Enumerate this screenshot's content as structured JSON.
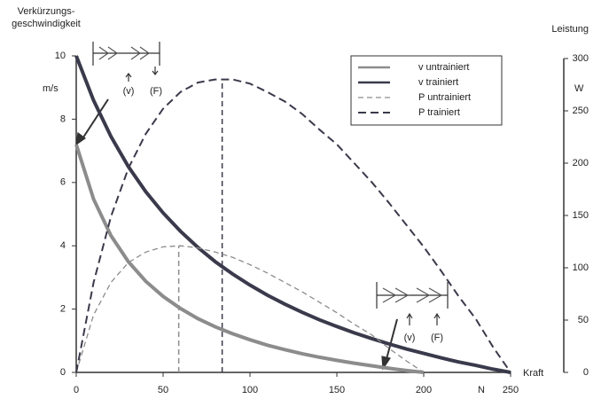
{
  "chart_data": {
    "type": "line",
    "y_label_lines": [
      "Verkürzungs-",
      "geschwindigkeit"
    ],
    "y_unit": "m/s",
    "y2_label": "Leistung",
    "y2_unit": "W",
    "x_label": "Kraft",
    "x_unit": "N",
    "x": [
      0,
      10,
      20,
      30,
      40,
      50,
      60,
      70,
      80,
      90,
      100,
      110,
      120,
      130,
      140,
      150,
      160,
      170,
      180,
      190,
      200,
      210,
      220,
      230,
      240,
      250
    ],
    "series": [
      {
        "name": "v untrainiert",
        "color": "#8c8c8c",
        "style": "solid",
        "width": 4,
        "values": [
          7.2,
          5.47,
          4.32,
          3.5,
          2.88,
          2.4,
          2.02,
          1.7,
          1.44,
          1.22,
          1.03,
          0.86,
          0.72,
          0.59,
          0.48,
          0.38,
          0.29,
          0.21,
          0.13,
          0.06,
          0,
          null,
          null,
          null,
          null,
          null
        ]
      },
      {
        "name": "v trainiert",
        "color": "#3a3a4c",
        "style": "solid",
        "width": 4,
        "values": [
          10,
          8.59,
          7.45,
          6.5,
          5.71,
          5.04,
          4.46,
          3.95,
          3.5,
          3.11,
          2.76,
          2.44,
          2.16,
          1.9,
          1.66,
          1.45,
          1.25,
          1.07,
          0.9,
          0.74,
          0.6,
          0.46,
          0.33,
          0.22,
          0.1,
          0
        ]
      },
      {
        "name": "P untrainiert",
        "color": "#8c8c8c",
        "style": "dashed",
        "width": 1.3,
        "axis": "y2",
        "values": [
          0,
          55,
          86,
          105,
          115,
          120,
          121,
          119,
          115,
          110,
          103,
          95,
          86,
          77,
          67,
          57,
          46,
          36,
          23,
          11,
          0,
          null,
          null,
          null,
          null,
          null
        ]
      },
      {
        "name": "P trainiert",
        "color": "#3a3a4c",
        "style": "dashed",
        "width": 2,
        "axis": "y2",
        "values": [
          0,
          86,
          149,
          195,
          228,
          252,
          268,
          277,
          280,
          280,
          276,
          268,
          259,
          247,
          232,
          218,
          200,
          182,
          162,
          141,
          120,
          97,
          73,
          51,
          24,
          0
        ]
      }
    ],
    "peak_lines": [
      {
        "x": 59,
        "color": "#8c8c8c",
        "series": 2
      },
      {
        "x": 84,
        "color": "#3a3a4c",
        "series": 3
      }
    ],
    "xlim": [
      0,
      250
    ],
    "xticks": [
      0,
      50,
      100,
      150,
      200,
      250
    ],
    "ylim": [
      0,
      10
    ],
    "yticks": [
      0,
      2,
      4,
      6,
      8,
      10
    ],
    "y2lim": [
      0,
      300
    ],
    "y2ticks": [
      0,
      50,
      100,
      150,
      200,
      250,
      300
    ],
    "legend": "top-right",
    "icons": [
      {
        "labels": [
          "(v)",
          "(F)"
        ]
      },
      {
        "labels": [
          "(v)",
          "(F)"
        ]
      }
    ]
  }
}
